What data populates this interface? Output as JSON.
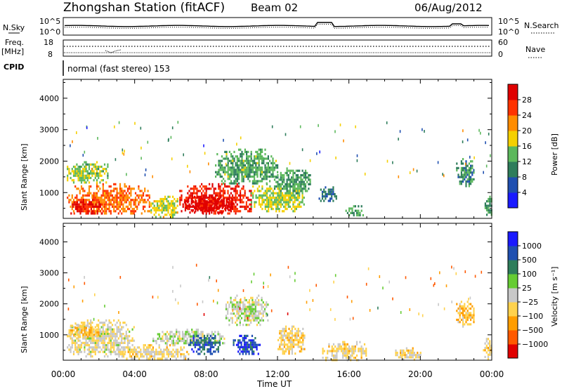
{
  "header": {
    "title": "Zhongshan Station (fitACF)",
    "beam": "Beam 02",
    "date": "06/Aug/2012"
  },
  "strips": {
    "nsky_label": "N.Sky",
    "nsearch_label": "N.Search",
    "freq_label_1": "Freq.",
    "freq_label_2": "[MHz]",
    "nave_label": "Nave",
    "cpid_label": "CPID",
    "cpid_text": "normal (fast stereo) 153",
    "noise_ticks_left": [
      "10^5",
      "10^0"
    ],
    "noise_ticks_right": [
      "10^5",
      "10^0"
    ],
    "freq_ticks_left": [
      "18",
      "8"
    ],
    "freq_ticks_right": [
      "60",
      "0"
    ]
  },
  "panels": {
    "power": {
      "ylabel": "Slant Range [km]",
      "yticks": [
        "4000",
        "3000",
        "2000",
        "1000"
      ],
      "colorbar_label": "Power [dB]",
      "colorbar_ticks": [
        "28",
        "24",
        "20",
        "16",
        "12",
        "8",
        "4"
      ]
    },
    "velocity": {
      "ylabel": "Slant Range [km]",
      "yticks": [
        "4000",
        "3000",
        "2000",
        "1000"
      ],
      "colorbar_label": "Velocity [m s⁻¹]",
      "colorbar_ticks": [
        "1000",
        "500",
        "100",
        "25",
        "−25",
        "−100",
        "−500",
        "−1000"
      ]
    }
  },
  "xaxis": {
    "label": "Time UT",
    "ticks": [
      "00:00",
      "04:00",
      "08:00",
      "12:00",
      "16:00",
      "20:00",
      "00:00"
    ]
  },
  "chart_data": [
    {
      "type": "heatmap",
      "title": "Power",
      "xlabel": "Time UT",
      "ylabel": "Slant Range [km]",
      "xlim": [
        0,
        24
      ],
      "ylim": [
        180,
        4600
      ],
      "value_range": [
        0,
        30
      ],
      "colors": [
        "#1a1aff",
        "#1f4fb0",
        "#2e7d5b",
        "#5cb85c",
        "#f5d000",
        "#ff8c00",
        "#ff3300",
        "#e00000"
      ],
      "regions": [
        {
          "x": [
            0.2,
            4.8
          ],
          "y": [
            300,
            1300
          ],
          "value": 22
        },
        {
          "x": [
            0.4,
            2.2
          ],
          "y": [
            300,
            800
          ],
          "value": 28
        },
        {
          "x": [
            0.2,
            2.5
          ],
          "y": [
            1300,
            2000
          ],
          "value": 14
        },
        {
          "x": [
            4.8,
            6.5
          ],
          "y": [
            250,
            900
          ],
          "value": 16
        },
        {
          "x": [
            6.5,
            10.5
          ],
          "y": [
            300,
            1300
          ],
          "value": 26
        },
        {
          "x": [
            6.8,
            9.5
          ],
          "y": [
            350,
            900
          ],
          "value": 29
        },
        {
          "x": [
            8.5,
            12.0
          ],
          "y": [
            1300,
            2400
          ],
          "value": 12
        },
        {
          "x": [
            10.5,
            13.5
          ],
          "y": [
            400,
            1300
          ],
          "value": 15
        },
        {
          "x": [
            11.8,
            13.8
          ],
          "y": [
            1000,
            1800
          ],
          "value": 11
        },
        {
          "x": [
            14.3,
            15.3
          ],
          "y": [
            700,
            1200
          ],
          "value": 8
        },
        {
          "x": [
            15.8,
            16.8
          ],
          "y": [
            250,
            600
          ],
          "value": 12
        },
        {
          "x": [
            22.0,
            23.0
          ],
          "y": [
            1200,
            2100
          ],
          "value": 10
        },
        {
          "x": [
            23.6,
            24.0
          ],
          "y": [
            250,
            900
          ],
          "value": 11
        }
      ]
    },
    {
      "type": "heatmap",
      "title": "Velocity",
      "xlabel": "Time UT",
      "ylabel": "Slant Range [km]",
      "xlim": [
        0,
        24
      ],
      "ylim": [
        180,
        4600
      ],
      "value_range": [
        -1000,
        1000
      ],
      "colors": [
        "#e00000",
        "#ff5a00",
        "#ff9d00",
        "#ffd24d",
        "#c8c8c8",
        "#66cc33",
        "#2e7d5b",
        "#1f4fb0",
        "#1a1aff"
      ],
      "regions": [
        {
          "x": [
            0.2,
            4.0
          ],
          "y": [
            300,
            1500
          ],
          "value": -60
        },
        {
          "x": [
            0.3,
            2.0
          ],
          "y": [
            900,
            1400
          ],
          "value": -300
        },
        {
          "x": [
            3.0,
            7.0
          ],
          "y": [
            200,
            700
          ],
          "value": -150
        },
        {
          "x": [
            5.0,
            9.0
          ],
          "y": [
            700,
            1200
          ],
          "value": 60
        },
        {
          "x": [
            7.0,
            8.8
          ],
          "y": [
            400,
            1000
          ],
          "value": 600
        },
        {
          "x": [
            9.5,
            11.0
          ],
          "y": [
            400,
            1000
          ],
          "value": 700
        },
        {
          "x": [
            9.0,
            11.5
          ],
          "y": [
            1300,
            2300
          ],
          "value": 10
        },
        {
          "x": [
            12.0,
            13.5
          ],
          "y": [
            400,
            1300
          ],
          "value": -200
        },
        {
          "x": [
            14.5,
            17.0
          ],
          "y": [
            200,
            800
          ],
          "value": -150
        },
        {
          "x": [
            18.5,
            20.0
          ],
          "y": [
            200,
            600
          ],
          "value": -150
        },
        {
          "x": [
            22.0,
            23.0
          ],
          "y": [
            1300,
            2100
          ],
          "value": -300
        },
        {
          "x": [
            23.5,
            24.0
          ],
          "y": [
            200,
            900
          ],
          "value": -150
        }
      ]
    }
  ]
}
